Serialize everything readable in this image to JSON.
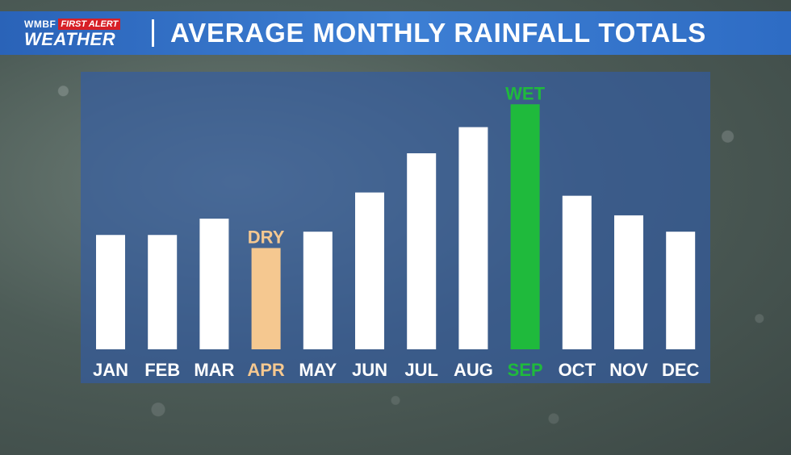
{
  "header": {
    "station": "WMBF",
    "badge": "FIRST ALERT",
    "weather": "WEATHER",
    "title": "AVERAGE MONTHLY RAINFALL TOTALS"
  },
  "colors": {
    "normal_bar": "#ffffff",
    "dry": "#f5c890",
    "wet": "#1fba3c",
    "text": "#ffffff"
  },
  "chart_data": {
    "type": "bar",
    "categories": [
      "JAN",
      "FEB",
      "MAR",
      "APR",
      "MAY",
      "JUN",
      "JUL",
      "AUG",
      "SEP",
      "OCT",
      "NOV",
      "DEC"
    ],
    "values": [
      3.5,
      3.5,
      4.0,
      3.1,
      3.6,
      4.8,
      6.0,
      6.8,
      7.5,
      4.7,
      4.1,
      3.6
    ],
    "ylim": [
      0,
      8
    ],
    "highlights": [
      {
        "category": "APR",
        "label": "DRY",
        "color": "#f5c890"
      },
      {
        "category": "SEP",
        "label": "WET",
        "color": "#1fba3c"
      }
    ]
  }
}
